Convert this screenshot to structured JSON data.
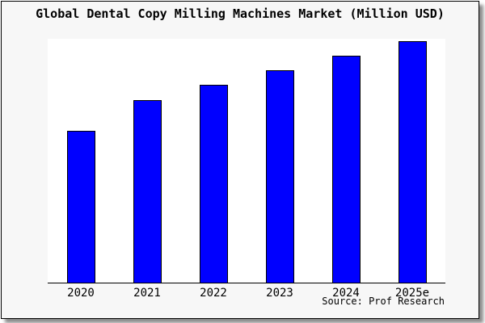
{
  "frame": {
    "background": "#f7f7f7",
    "border_color": "#000000",
    "shadow_color": "#737373"
  },
  "source_credit": "Source: Prof Research",
  "chart_data": {
    "type": "bar",
    "title": "Global Dental Copy Milling Machines Market (Million USD)",
    "categories": [
      "2020",
      "2021",
      "2022",
      "2023",
      "2024",
      "2025e"
    ],
    "values": [
      188,
      226,
      245,
      263,
      281,
      299
    ],
    "value_note": "no y-axis or data labels shown in image; values are relative bar heights measured in pixels",
    "ylim": [
      0,
      302
    ],
    "xlabel": "",
    "ylabel": "",
    "grid": false,
    "legend": "none",
    "y_axis_visible": false,
    "bar_color": "#0000ff",
    "bar_border_color": "#000000",
    "plot_background": "#ffffff",
    "axis_color": "#000000"
  }
}
